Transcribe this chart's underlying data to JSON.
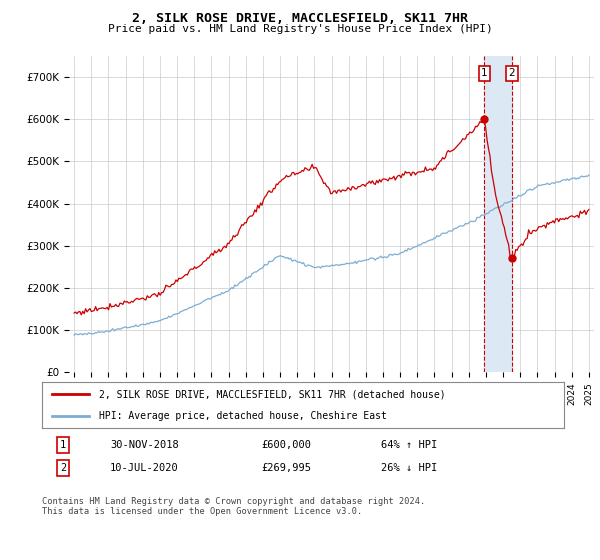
{
  "title": "2, SILK ROSE DRIVE, MACCLESFIELD, SK11 7HR",
  "subtitle": "Price paid vs. HM Land Registry's House Price Index (HPI)",
  "background_color": "#ffffff",
  "grid_color": "#cccccc",
  "sale1_date": "30-NOV-2018",
  "sale1_price": 600000,
  "sale1_price_str": "£600,000",
  "sale1_label": "1",
  "sale1_hpi": "64% ↑ HPI",
  "sale1_year": 2018.917,
  "sale2_date": "10-JUL-2020",
  "sale2_price": 269995,
  "sale2_price_str": "£269,995",
  "sale2_label": "2",
  "sale2_hpi": "26% ↓ HPI",
  "sale2_year": 2020.5,
  "legend_line1": "2, SILK ROSE DRIVE, MACCLESFIELD, SK11 7HR (detached house)",
  "legend_line2": "HPI: Average price, detached house, Cheshire East",
  "footer": "Contains HM Land Registry data © Crown copyright and database right 2024.\nThis data is licensed under the Open Government Licence v3.0.",
  "red_color": "#cc0000",
  "blue_color": "#7aaed6",
  "highlight_color": "#dde8f5",
  "ylim": [
    0,
    750000
  ],
  "yticks": [
    0,
    100000,
    200000,
    300000,
    400000,
    500000,
    600000,
    700000
  ],
  "ytick_labels": [
    "£0",
    "£100K",
    "£200K",
    "£300K",
    "£400K",
    "£500K",
    "£600K",
    "£700K"
  ],
  "x_start_year": 1995,
  "x_end_year": 2025
}
